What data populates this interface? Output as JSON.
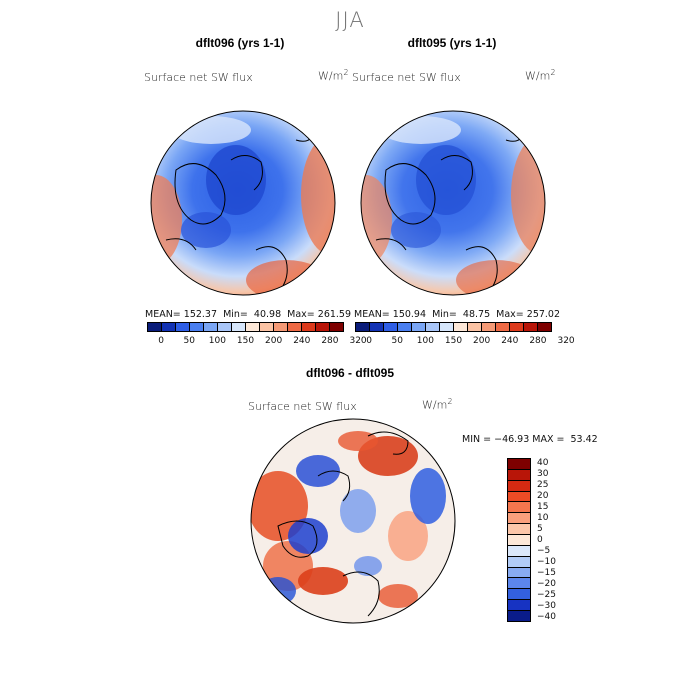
{
  "figure": {
    "season": "JJA",
    "panel_left": {
      "title": "dflt096 (yrs 1-1)",
      "variable": "Surface net SW flux",
      "units_base": "W/m",
      "units_exp": "2",
      "stats": "MEAN= 152.37  Min=  40.98  Max= 261.59",
      "cbar_ticks": [
        "0",
        "50",
        "100",
        "150",
        "200",
        "240",
        "280",
        "320"
      ]
    },
    "panel_right": {
      "title": "dflt095 (yrs 1-1)",
      "variable": "Surface net SW flux",
      "units_base": "W/m",
      "units_exp": "2",
      "stats": "MEAN= 150.94  Min=  48.75  Max= 257.02",
      "cbar_ticks": [
        "0",
        "50",
        "100",
        "150",
        "200",
        "240",
        "280",
        "320"
      ]
    },
    "panel_diff": {
      "title": "dflt096 - dflt095",
      "variable": "Surface net SW flux",
      "units_base": "W/m",
      "units_exp": "2",
      "minmax": "MIN = −46.93 MAX =  53.42",
      "cbar_ticks": [
        "40",
        "30",
        "25",
        "20",
        "15",
        "10",
        "5",
        "0",
        "−5",
        "−10",
        "−15",
        "−20",
        "−25",
        "−30",
        "−40"
      ]
    }
  },
  "colors": {
    "abs_scale": [
      "#0a1c7a",
      "#1232b4",
      "#2e5ee6",
      "#4a7ff0",
      "#7aa6f5",
      "#a9c6f8",
      "#d6e6fb",
      "#fde8d8",
      "#fbc3a4",
      "#f59a76",
      "#ee6a45",
      "#dd3a1c",
      "#b81508",
      "#7e0000"
    ],
    "diff_scale": [
      "#7e0000",
      "#b81508",
      "#d62a12",
      "#ee4b25",
      "#f5764e",
      "#fa9f7c",
      "#fcc6a9",
      "#fde8d8",
      "#dbe8fb",
      "#b2ccf7",
      "#88abf2",
      "#5c86ec",
      "#3360de",
      "#1733c2",
      "#0a1c8a"
    ]
  },
  "chart_data": [
    {
      "type": "map",
      "title": "dflt096 (yrs 1-1)",
      "variable": "Surface net SW flux",
      "units": "W/m2",
      "season": "JJA",
      "projection": "north polar stereographic",
      "stats": {
        "mean": 152.37,
        "min": 40.98,
        "max": 261.59
      },
      "colorbar_levels": [
        0,
        50,
        100,
        150,
        200,
        240,
        280,
        320
      ]
    },
    {
      "type": "map",
      "title": "dflt095 (yrs 1-1)",
      "variable": "Surface net SW flux",
      "units": "W/m2",
      "season": "JJA",
      "projection": "north polar stereographic",
      "stats": {
        "mean": 150.94,
        "min": 48.75,
        "max": 257.02
      },
      "colorbar_levels": [
        0,
        50,
        100,
        150,
        200,
        240,
        280,
        320
      ]
    },
    {
      "type": "map",
      "title": "dflt096 - dflt095",
      "variable": "Surface net SW flux",
      "units": "W/m2",
      "season": "JJA",
      "projection": "north polar stereographic",
      "stats": {
        "min": -46.93,
        "max": 53.42
      },
      "colorbar_levels": [
        40,
        30,
        25,
        20,
        15,
        10,
        5,
        0,
        -5,
        -10,
        -15,
        -20,
        -25,
        -30,
        -40
      ]
    }
  ]
}
